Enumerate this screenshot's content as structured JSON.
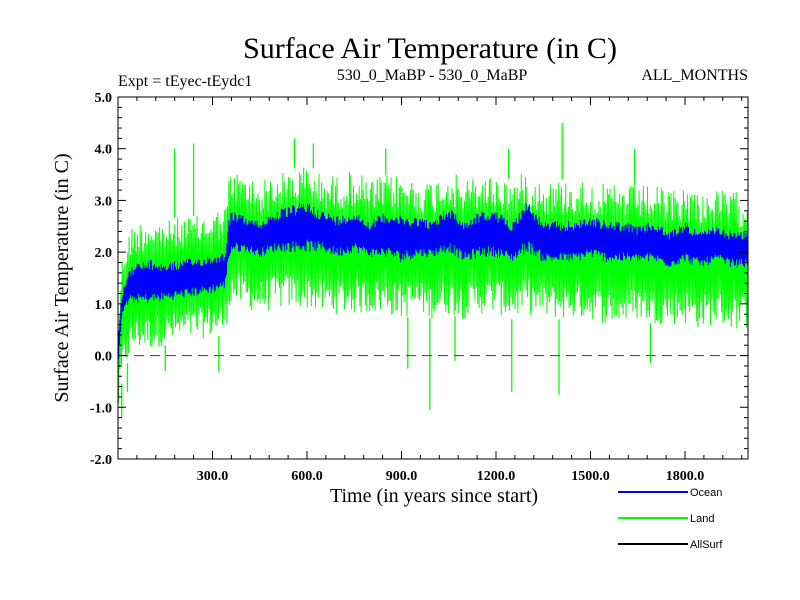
{
  "chart_data": {
    "type": "line",
    "title": "Surface Air Temperature (in C)",
    "subtitle_left": "Expt = tEyec-tEydc1",
    "subtitle_center": "530_0_MaBP - 530_0_MaBP",
    "subtitle_right": "ALL_MONTHS",
    "xlabel": "Time (in years since start)",
    "ylabel": "Surface Air Temperature (in C)",
    "xlim": [
      0,
      2000
    ],
    "ylim": [
      -2.0,
      5.0
    ],
    "x_ticks": [
      300,
      600,
      900,
      1200,
      1500,
      1800
    ],
    "x_tick_labels": [
      "300.0",
      "600.0",
      "900.0",
      "1200.0",
      "1500.0",
      "1800.0"
    ],
    "y_ticks": [
      -2.0,
      -1.0,
      0.0,
      1.0,
      2.0,
      3.0,
      4.0,
      5.0
    ],
    "y_tick_labels": [
      "-2.0",
      "-1.0",
      "0.0",
      "1.0",
      "2.0",
      "3.0",
      "4.0",
      "5.0"
    ],
    "zero_line": 0.0,
    "series": [
      {
        "name": "Ocean",
        "color": "#0000ff",
        "envelope_x": [
          0,
          10,
          20,
          40,
          60,
          100,
          150,
          200,
          250,
          300,
          340,
          350,
          360,
          400,
          450,
          500,
          550,
          600,
          650,
          700,
          750,
          800,
          850,
          900,
          950,
          1000,
          1050,
          1100,
          1150,
          1200,
          1250,
          1300,
          1350,
          1400,
          1450,
          1500,
          1550,
          1600,
          1650,
          1700,
          1750,
          1800,
          1850,
          1900,
          1950,
          2000
        ],
        "envelope_low": [
          -0.2,
          0.6,
          0.9,
          1.0,
          1.0,
          1.0,
          1.05,
          1.1,
          1.15,
          1.2,
          1.3,
          1.8,
          2.0,
          2.0,
          1.9,
          2.0,
          2.0,
          2.0,
          2.0,
          1.9,
          2.0,
          1.9,
          1.9,
          1.8,
          1.9,
          1.9,
          2.0,
          1.8,
          1.9,
          1.9,
          1.8,
          2.0,
          1.8,
          1.8,
          1.8,
          1.9,
          1.8,
          1.8,
          1.8,
          1.8,
          1.7,
          1.8,
          1.7,
          1.8,
          1.7,
          1.7
        ],
        "envelope_high": [
          0.3,
          1.1,
          1.4,
          1.7,
          1.8,
          1.85,
          1.8,
          1.85,
          1.9,
          1.95,
          2.0,
          2.6,
          2.8,
          2.7,
          2.6,
          2.8,
          2.9,
          3.0,
          2.8,
          2.7,
          2.8,
          2.6,
          2.8,
          2.7,
          2.7,
          2.6,
          2.9,
          2.6,
          2.8,
          2.8,
          2.6,
          3.0,
          2.6,
          2.6,
          2.6,
          2.7,
          2.6,
          2.6,
          2.5,
          2.6,
          2.4,
          2.6,
          2.4,
          2.5,
          2.4,
          2.4
        ]
      },
      {
        "name": "Land",
        "color": "#00ff00",
        "envelope_x": [
          0,
          10,
          20,
          40,
          60,
          100,
          150,
          200,
          250,
          300,
          340,
          350,
          360,
          400,
          450,
          500,
          550,
          600,
          650,
          700,
          750,
          800,
          850,
          900,
          950,
          1000,
          1050,
          1100,
          1150,
          1200,
          1250,
          1300,
          1350,
          1400,
          1450,
          1500,
          1550,
          1600,
          1650,
          1700,
          1750,
          1800,
          1850,
          1900,
          1950,
          2000
        ],
        "envelope_low": [
          -1.2,
          -0.6,
          -0.3,
          0.0,
          0.1,
          0.1,
          0.2,
          0.25,
          0.3,
          0.35,
          0.4,
          0.8,
          1.0,
          0.9,
          0.8,
          0.9,
          0.9,
          0.9,
          0.8,
          0.8,
          0.8,
          0.8,
          0.8,
          0.7,
          0.8,
          0.7,
          0.8,
          0.7,
          0.8,
          0.8,
          0.7,
          0.8,
          0.7,
          0.7,
          0.7,
          0.7,
          0.6,
          0.6,
          0.7,
          0.6,
          0.6,
          0.6,
          0.5,
          0.6,
          0.5,
          0.5
        ],
        "envelope_high": [
          0.6,
          1.8,
          2.2,
          2.5,
          2.6,
          2.7,
          2.6,
          2.7,
          2.7,
          2.8,
          2.9,
          3.4,
          3.6,
          3.5,
          3.4,
          3.5,
          3.6,
          3.7,
          3.5,
          3.5,
          3.6,
          3.4,
          3.5,
          3.5,
          3.4,
          3.4,
          3.6,
          3.4,
          3.5,
          3.5,
          3.4,
          3.6,
          3.4,
          3.4,
          3.4,
          3.4,
          3.3,
          3.3,
          3.3,
          3.3,
          3.2,
          3.3,
          3.2,
          3.2,
          3.2,
          3.1
        ],
        "spikes": [
          {
            "x": 180,
            "y": 4.0
          },
          {
            "x": 240,
            "y": 4.1
          },
          {
            "x": 560,
            "y": 4.2
          },
          {
            "x": 620,
            "y": 4.1
          },
          {
            "x": 1410,
            "y": 4.5
          },
          {
            "x": 1640,
            "y": 4.0
          },
          {
            "x": 850,
            "y": 4.0
          },
          {
            "x": 1240,
            "y": 4.0
          },
          {
            "x": 12,
            "y": -1.2
          },
          {
            "x": 30,
            "y": -0.7
          },
          {
            "x": 150,
            "y": -0.3
          },
          {
            "x": 320,
            "y": -0.3
          },
          {
            "x": 920,
            "y": -0.25
          },
          {
            "x": 990,
            "y": -1.05
          },
          {
            "x": 1070,
            "y": -0.1
          },
          {
            "x": 1250,
            "y": -0.7
          },
          {
            "x": 1400,
            "y": -0.75
          },
          {
            "x": 1690,
            "y": -0.15
          }
        ]
      },
      {
        "name": "AllSurf",
        "color": "#000000"
      }
    ],
    "legend": [
      "Ocean",
      "Land",
      "AllSurf"
    ],
    "legend_position": "bottom-right"
  }
}
